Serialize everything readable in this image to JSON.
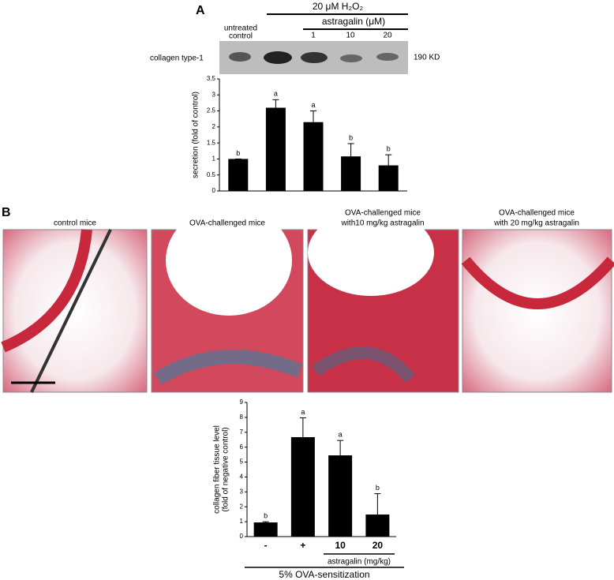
{
  "panel_labels": [
    "A",
    "B"
  ],
  "blot": {
    "treatment": "20 μM H₂O₂",
    "drug": "astragalin (μM)",
    "control_lines": [
      "untreated",
      "control"
    ],
    "lanes": [
      "1",
      "10",
      "20"
    ],
    "protein": "collagen type-1",
    "size": "190 KD"
  },
  "images": [
    "control mice",
    "OVA-challenged  mice",
    [
      "OVA-challenged  mice",
      "with10  mg/kg astragalin"
    ],
    [
      "OVA-challenged mice",
      "with 20 mg/kg astragalin"
    ]
  ],
  "chart_data": [
    {
      "type": "bar",
      "ylabel": "secretion (fold of control)",
      "values": [
        1.0,
        2.6,
        2.15,
        1.08,
        0.8
      ],
      "errors": [
        0,
        0.25,
        0.35,
        0.4,
        0.33
      ],
      "annotations": [
        "b",
        "a",
        "a",
        "b",
        "b"
      ],
      "color": "#000000",
      "ylim": [
        0,
        3.5
      ],
      "yticks": [
        0,
        0.5,
        1,
        1.5,
        2,
        2.5,
        3,
        3.5
      ]
    },
    {
      "type": "bar",
      "ylabel": [
        "collagen fiber tissue level",
        "(fold of negative control)"
      ],
      "categories": [
        "-",
        "+",
        "10",
        "20"
      ],
      "values": [
        0.95,
        6.67,
        5.45,
        1.48
      ],
      "errors": [
        0.05,
        1.3,
        1.0,
        1.4
      ],
      "annotations": [
        "b",
        "a",
        "a",
        "b"
      ],
      "color": "#000000",
      "ylim": [
        0,
        9
      ],
      "yticks": [
        0,
        1,
        2,
        3,
        4,
        5,
        6,
        7,
        8,
        9
      ],
      "group_label": "astragalin (mg/kg)",
      "sensitization": "5% OVA-sensitization"
    }
  ]
}
